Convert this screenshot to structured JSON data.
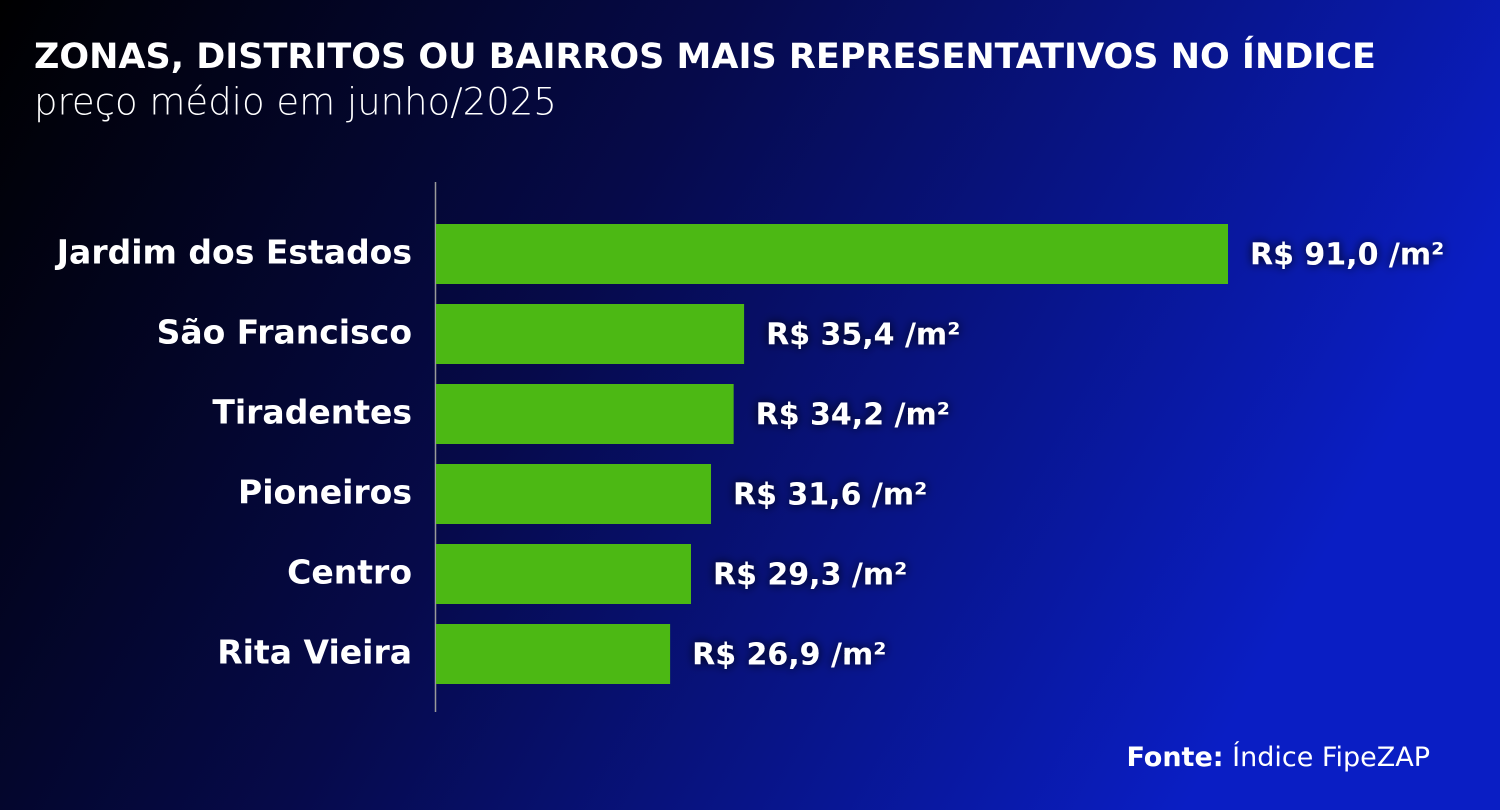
{
  "chart_data": {
    "type": "bar",
    "orientation": "horizontal",
    "title": "ZONAS, DISTRITOS OU BAIRROS MAIS REPRESENTATIVOS NO ÍNDICE",
    "subtitle": "preço médio em junho/2025",
    "categories": [
      "Jardim dos Estados",
      "São Francisco",
      "Tiradentes",
      "Pioneiros",
      "Centro",
      "Rita Vieira"
    ],
    "values": [
      91.0,
      35.4,
      34.2,
      31.6,
      29.3,
      26.9
    ],
    "value_labels": [
      "R$ 91,0 /m²",
      "R$ 35,4 /m²",
      "R$ 34,2 /m²",
      "R$ 31,6 /m²",
      "R$ 29,3 /m²",
      "R$ 26,9 /m²"
    ],
    "color": "#4cb814",
    "source": {
      "label": "Fonte:",
      "text": "Índice FipeZAP"
    }
  }
}
